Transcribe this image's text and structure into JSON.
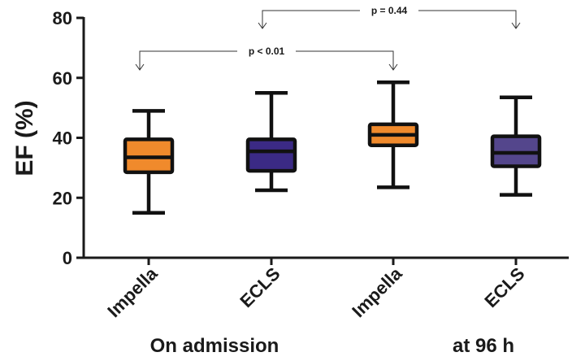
{
  "chart_data": {
    "type": "box",
    "ylabel": "EF (%)",
    "ylim": [
      0,
      80
    ],
    "yticks": [
      0,
      20,
      40,
      60,
      80
    ],
    "categories": [
      "Impella",
      "ECLS",
      "Impella",
      "ECLS"
    ],
    "groups": [
      "On admission",
      "at 96 h"
    ],
    "boxes": [
      {
        "label": "Impella",
        "group": "On admission",
        "min": 15,
        "q1": 28.5,
        "median": 33.5,
        "q3": 39.5,
        "max": 49,
        "color": "#F08A2C"
      },
      {
        "label": "ECLS",
        "group": "On admission",
        "min": 22.5,
        "q1": 29,
        "median": 35.5,
        "q3": 39.5,
        "max": 55,
        "color": "#3B2A85"
      },
      {
        "label": "Impella",
        "group": "at 96 h",
        "min": 23.5,
        "q1": 37.5,
        "median": 41,
        "q3": 44.5,
        "max": 58.5,
        "color": "#F08A2C"
      },
      {
        "label": "ECLS",
        "group": "at 96 h",
        "min": 21,
        "q1": 30.5,
        "median": 35,
        "q3": 40.5,
        "max": 53.5,
        "color": "#54468C"
      }
    ],
    "comparisons": [
      {
        "label": "p < 0.01",
        "from": 0,
        "to": 2
      },
      {
        "label": "p = 0.44",
        "from": 1,
        "to": 3
      }
    ]
  }
}
